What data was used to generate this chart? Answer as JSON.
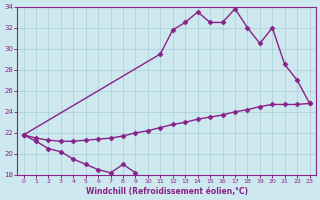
{
  "title": "Windchill (Refroidissement éolien,°C)",
  "background_color": "#cde8ee",
  "grid_color": "#a8cdd4",
  "line_color": "#882288",
  "ylim": [
    18,
    34
  ],
  "xlim": [
    -0.5,
    23.5
  ],
  "yticks": [
    18,
    20,
    22,
    24,
    26,
    28,
    30,
    32,
    34
  ],
  "xticks": [
    0,
    1,
    2,
    3,
    4,
    5,
    6,
    7,
    8,
    9,
    10,
    11,
    12,
    13,
    14,
    15,
    16,
    17,
    18,
    19,
    20,
    21,
    22,
    23
  ],
  "line1_x": [
    0,
    1,
    2,
    3,
    4,
    5,
    6,
    7,
    8,
    9
  ],
  "line1_y": [
    21.8,
    21.2,
    20.5,
    20.2,
    19.5,
    19.0,
    18.5,
    18.2,
    19.0,
    18.2
  ],
  "line2_x": [
    0,
    11,
    12,
    13,
    14,
    15,
    16,
    17,
    18,
    19,
    20,
    21,
    22,
    23
  ],
  "line2_y": [
    21.8,
    29.5,
    31.8,
    32.5,
    33.5,
    32.5,
    32.5,
    33.8,
    32.0,
    30.5,
    32.0,
    28.5,
    27.0,
    24.8
  ],
  "line3_x": [
    0,
    1,
    2,
    3,
    4,
    5,
    6,
    7,
    8,
    9,
    10,
    11,
    12,
    13,
    14,
    15,
    16,
    17,
    18,
    19,
    20,
    21,
    22,
    23
  ],
  "line3_y": [
    21.8,
    21.5,
    21.3,
    21.2,
    21.2,
    21.3,
    21.4,
    21.5,
    21.7,
    22.0,
    22.2,
    22.5,
    22.8,
    23.0,
    23.3,
    23.5,
    23.7,
    24.0,
    24.2,
    24.5,
    24.7,
    24.7,
    24.7,
    24.8
  ],
  "marker": "D",
  "marker_size": 2.5,
  "line_width": 1.0
}
